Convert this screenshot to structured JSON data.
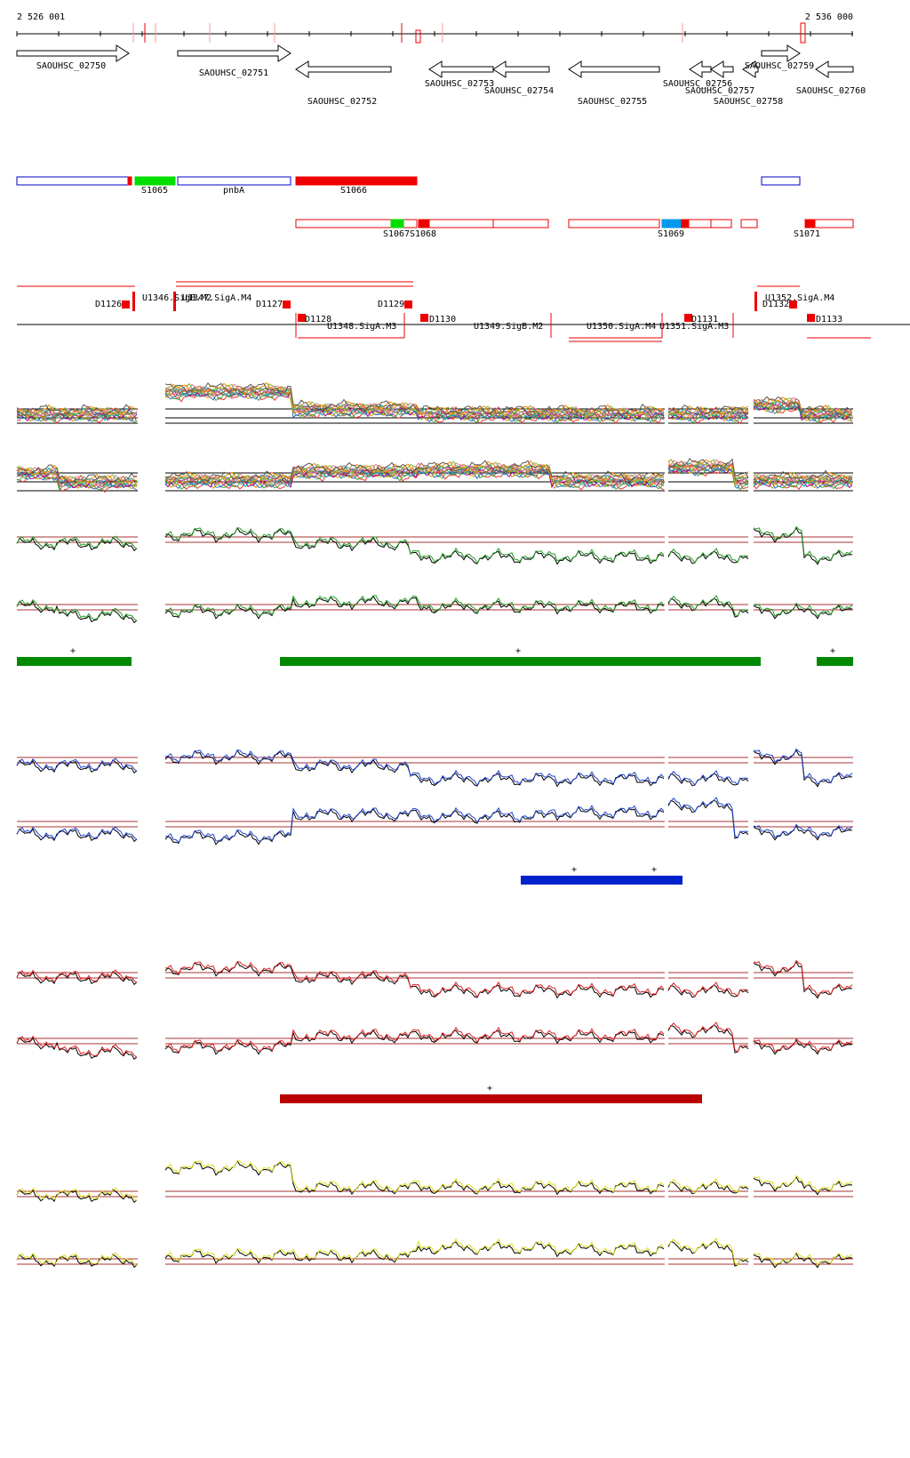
{
  "header": {
    "start": "2 526 001",
    "end": "2 536 000"
  },
  "genes": [
    {
      "label": "SAOUHSC_02750"
    },
    {
      "label": "SAOUHSC_02751"
    },
    {
      "label": "SAOUHSC_02752"
    },
    {
      "label": "SAOUHSC_02753"
    },
    {
      "label": "SAOUHSC_02754"
    },
    {
      "label": "SAOUHSC_02755"
    },
    {
      "label": "SAOUHSC_02756"
    },
    {
      "label": "SAOUHSC_02757"
    },
    {
      "label": "SAOUHSC_02758"
    },
    {
      "label": "SAOUHSC_02759"
    },
    {
      "label": "SAOUHSC_02760"
    }
  ],
  "segments": [
    {
      "label": "S1065"
    },
    {
      "label": "pnbA"
    },
    {
      "label": "S1066"
    },
    {
      "label": "S1067"
    },
    {
      "label": "S1068"
    },
    {
      "label": "S1069"
    },
    {
      "label": "S1071"
    }
  ],
  "promoters": [
    {
      "label": "D1126"
    },
    {
      "label": "U1346.SigB.M2"
    },
    {
      "label": "U1347.SigA.M4"
    },
    {
      "label": "D1127"
    },
    {
      "label": "D1128"
    },
    {
      "label": "U1348.SigA.M3"
    },
    {
      "label": "D1129"
    },
    {
      "label": "D1130"
    },
    {
      "label": "U1349.SigB.M2"
    },
    {
      "label": "U1350.SigA.M4"
    },
    {
      "label": "U1351.SigA.M3"
    },
    {
      "label": "D1131"
    },
    {
      "label": "U1352.SigA.M4"
    },
    {
      "label": "D1132"
    },
    {
      "label": "D1133"
    }
  ],
  "strand_mark": "+"
}
